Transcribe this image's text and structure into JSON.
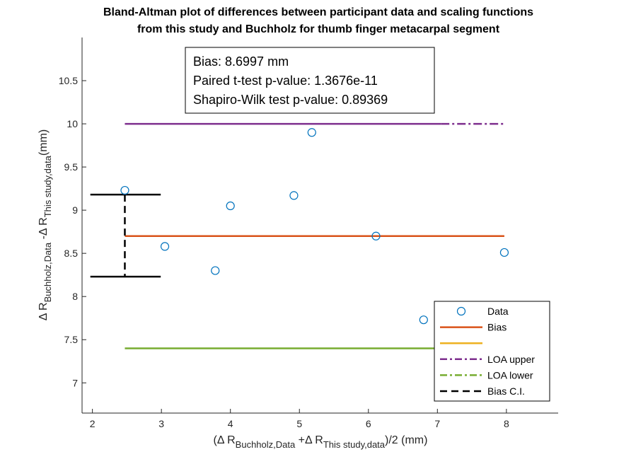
{
  "chart_data": {
    "type": "scatter",
    "title_line1": "Bland-Altman plot of differences between participant data and scaling functions",
    "title_line2": "from this study and Buchholz for thumb finger metacarpal segment",
    "xlabel": {
      "pre": "(Δ R",
      "sub1": "Buchholz,Data",
      "mid": " +Δ R",
      "sub2": "This study,data",
      "post": ")/2 (mm)"
    },
    "ylabel": {
      "pre": "Δ R",
      "sub1": "Buchholz,Data",
      "mid": " -Δ R",
      "sub2": "This study,data",
      "post": "(mm)"
    },
    "xlim": [
      1.85,
      8.75
    ],
    "ylim": [
      6.65,
      11.0
    ],
    "xticks": [
      2,
      3,
      4,
      5,
      6,
      7,
      8
    ],
    "yticks": [
      7,
      7.5,
      8,
      8.5,
      9,
      9.5,
      10,
      10.5
    ],
    "ytick_labels": [
      "7",
      "7.5",
      "8",
      "8.5",
      "9",
      "9.5",
      "10",
      "10.5"
    ],
    "points": [
      {
        "x": 2.47,
        "y": 9.23
      },
      {
        "x": 3.05,
        "y": 8.58
      },
      {
        "x": 3.78,
        "y": 8.3
      },
      {
        "x": 4.0,
        "y": 9.05
      },
      {
        "x": 4.92,
        "y": 9.17
      },
      {
        "x": 5.18,
        "y": 9.9
      },
      {
        "x": 6.11,
        "y": 8.7
      },
      {
        "x": 6.8,
        "y": 7.73
      },
      {
        "x": 7.97,
        "y": 8.51
      }
    ],
    "bias": 8.6997,
    "loa_upper": 10.0,
    "loa_lower": 7.4,
    "line_x_range": [
      2.47,
      7.97
    ],
    "bias_ci": {
      "x": 2.47,
      "low": 8.23,
      "high": 9.18,
      "cap_x_range": [
        1.97,
        2.99
      ]
    },
    "annotation": [
      "Bias: 8.6997 mm",
      "Paired t-test p-value: 1.3676e-11",
      "Shapiro-Wilk test p-value: 0.89369"
    ],
    "legend": {
      "placement": "bottom-right",
      "entries": [
        {
          "label": "Data",
          "style": "marker"
        },
        {
          "label": "Bias",
          "style": "solid",
          "color": "#D95319"
        },
        {
          "label": "",
          "style": "solid",
          "color": "#EDB120"
        },
        {
          "label": "LOA upper",
          "style": "dashdot",
          "color": "#7E2F8E"
        },
        {
          "label": "LOA lower",
          "style": "dashdot",
          "color": "#77AC30"
        },
        {
          "label": "Bias C.I.",
          "style": "dashed",
          "color": "#000000"
        }
      ]
    },
    "colors": {
      "data": "#0072BD",
      "bias": "#D95319",
      "loa_upper": "#7E2F8E",
      "loa_lower": "#77AC30",
      "ci": "#000000",
      "axis": "#262626"
    }
  }
}
